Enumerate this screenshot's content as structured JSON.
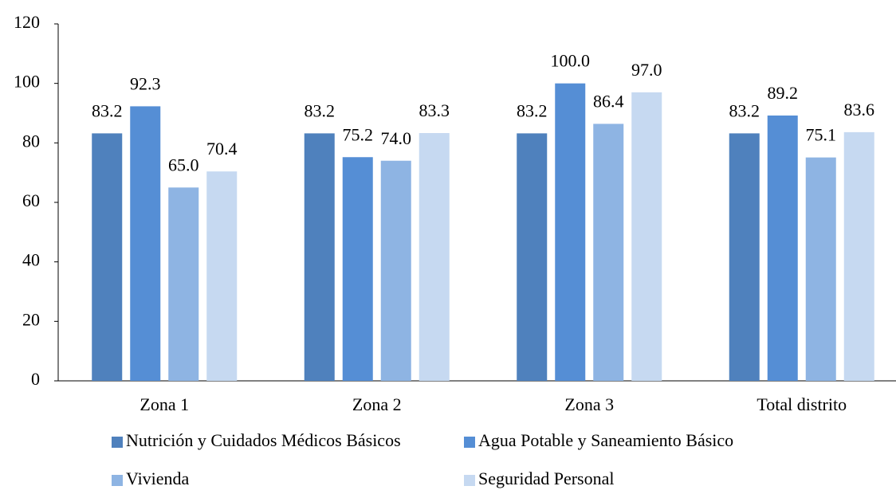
{
  "chart_data": {
    "type": "bar",
    "categories": [
      "Zona 1",
      "Zona 2",
      "Zona 3",
      "Total distrito"
    ],
    "series": [
      {
        "name": "Nutrición y Cuidados Médicos Básicos",
        "color": "#4f81bd",
        "values": [
          83.2,
          83.2,
          83.2,
          83.2
        ],
        "value_labels": [
          "83.2",
          "83.2",
          "83.2",
          "83.2"
        ]
      },
      {
        "name": "Agua Potable y Saneamiento Básico",
        "color": "#558ed5",
        "values": [
          92.3,
          75.2,
          100,
          89.2
        ],
        "value_labels": [
          "92.3",
          "75.2",
          "100.0",
          "89.2"
        ]
      },
      {
        "name": "Vivienda",
        "color": "#8eb4e3",
        "values": [
          65,
          74,
          86.4,
          75.1
        ],
        "value_labels": [
          "65.0",
          "74.0",
          "86.4",
          "75.1"
        ]
      },
      {
        "name": "Seguridad Personal",
        "color": "#c6d9f1",
        "values": [
          70.4,
          83.3,
          97,
          83.6
        ],
        "value_labels": [
          "70.4",
          "83.3",
          "97.0",
          "83.6"
        ]
      }
    ],
    "ylim": [
      0,
      120
    ],
    "yticks": [
      0,
      20,
      40,
      60,
      80,
      100,
      120
    ],
    "grid": false
  }
}
